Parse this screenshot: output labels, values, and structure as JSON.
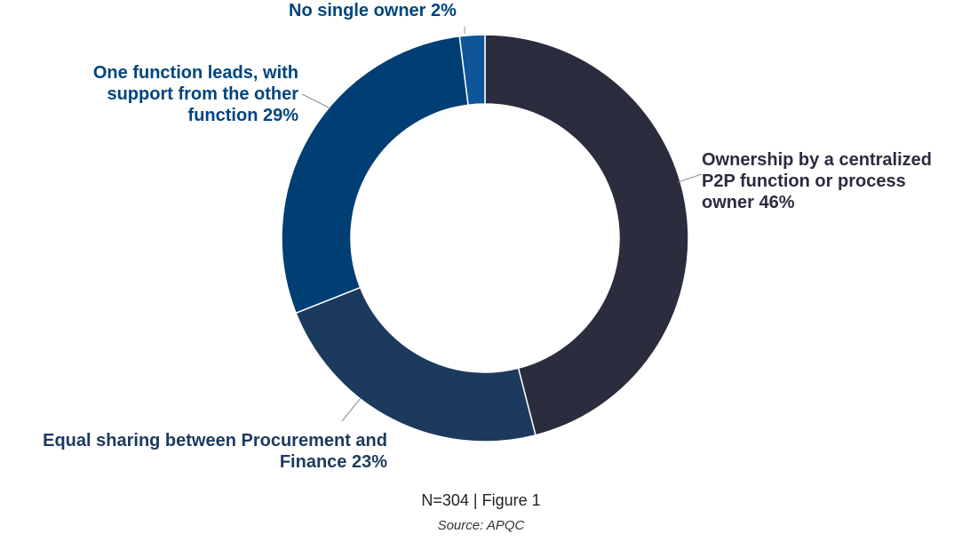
{
  "chart_data": {
    "type": "pie",
    "slices": [
      {
        "label": "Ownership by a centralized P2P function or process owner 46%",
        "value": 46,
        "color": "#2b2c3e"
      },
      {
        "label": "Equal sharing between Procurement and Finance 23%",
        "value": 23,
        "color": "#1c3a5e"
      },
      {
        "label": "One function leads, with support from the other function 29%",
        "value": 29,
        "color": "#003e74"
      },
      {
        "label": "No single owner 2%",
        "value": 2,
        "color": "#0e5599"
      }
    ],
    "footnote": "N=304 | Figure 1",
    "source": "Source: APQC"
  },
  "labels": {
    "owner_line1": "Ownership by a centralized",
    "owner_line2": "P2P function or process",
    "owner_line3": "owner 46%",
    "equal_line1": "Equal sharing between Procurement and",
    "equal_line2": "Finance 23%",
    "lead_line1": "One function leads, with",
    "lead_line2": "support from the other",
    "lead_line3": "function 29%",
    "none_line1": "No single owner 2%"
  },
  "colors": {
    "dark_label": "#2b2c3e",
    "blue_label": "#00457e",
    "leader_line": "#8a8f99"
  }
}
